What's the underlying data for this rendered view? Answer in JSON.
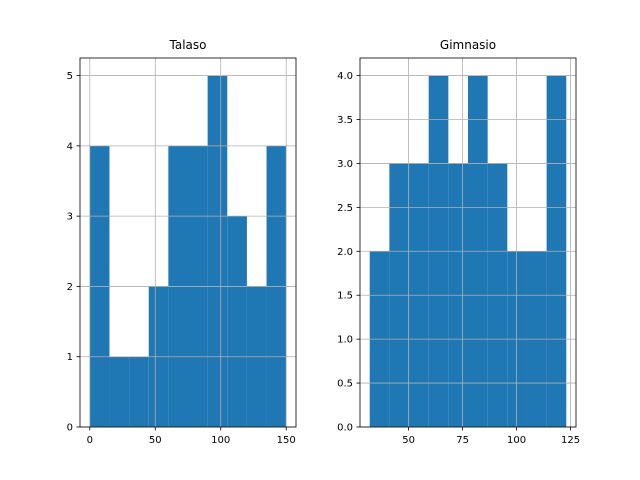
{
  "chart_data": [
    {
      "type": "bar",
      "title": "Talaso",
      "xlim": [
        -7.5,
        157.5
      ],
      "ylim": [
        0,
        5.25
      ],
      "xticks": [
        0,
        50,
        100,
        150
      ],
      "yticks": [
        0,
        1,
        2,
        3,
        4,
        5
      ],
      "grid": true,
      "color": "#1f77b4",
      "bins": [
        {
          "x0": 0,
          "x1": 15,
          "count": 4
        },
        {
          "x0": 15,
          "x1": 30,
          "count": 1
        },
        {
          "x0": 30,
          "x1": 45,
          "count": 1
        },
        {
          "x0": 45,
          "x1": 60,
          "count": 2
        },
        {
          "x0": 60,
          "x1": 75,
          "count": 4
        },
        {
          "x0": 75,
          "x1": 90,
          "count": 4
        },
        {
          "x0": 90,
          "x1": 105,
          "count": 5
        },
        {
          "x0": 105,
          "x1": 120,
          "count": 3
        },
        {
          "x0": 120,
          "x1": 135,
          "count": 2
        },
        {
          "x0": 135,
          "x1": 150,
          "count": 4
        }
      ]
    },
    {
      "type": "bar",
      "title": "Gimnasio",
      "xlim": [
        27.5,
        127.5
      ],
      "ylim": [
        0,
        4.2
      ],
      "xticks": [
        50,
        75,
        100,
        125
      ],
      "yticks": [
        0.0,
        0.5,
        1.0,
        1.5,
        2.0,
        2.5,
        3.0,
        3.5,
        4.0
      ],
      "grid": true,
      "color": "#1f77b4",
      "bins": [
        {
          "x0": 32,
          "x1": 41.1,
          "count": 2
        },
        {
          "x0": 41.1,
          "x1": 50.2,
          "count": 3
        },
        {
          "x0": 50.2,
          "x1": 59.3,
          "count": 3
        },
        {
          "x0": 59.3,
          "x1": 68.4,
          "count": 4
        },
        {
          "x0": 68.4,
          "x1": 77.5,
          "count": 3
        },
        {
          "x0": 77.5,
          "x1": 86.6,
          "count": 4
        },
        {
          "x0": 86.6,
          "x1": 95.7,
          "count": 3
        },
        {
          "x0": 95.7,
          "x1": 104.8,
          "count": 2
        },
        {
          "x0": 104.8,
          "x1": 113.9,
          "count": 2
        },
        {
          "x0": 113.9,
          "x1": 123,
          "count": 4
        }
      ]
    }
  ]
}
